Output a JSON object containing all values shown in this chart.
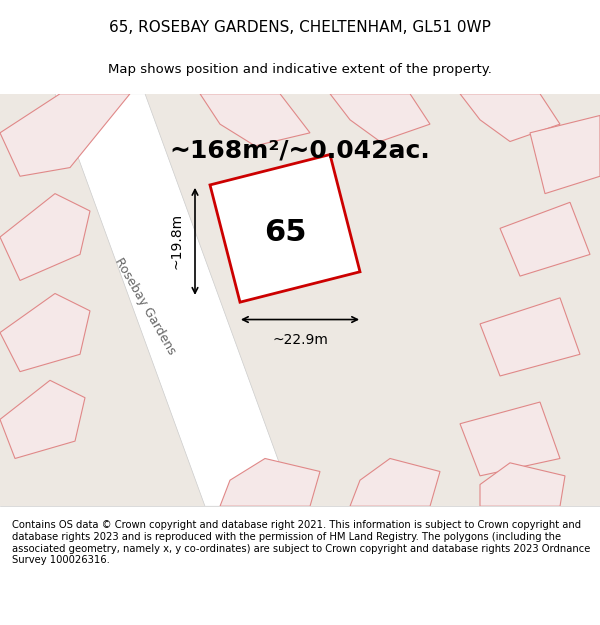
{
  "title": "65, ROSEBAY GARDENS, CHELTENHAM, GL51 0WP",
  "subtitle": "Map shows position and indicative extent of the property.",
  "area_label": "~168m²/~0.042ac.",
  "property_number": "65",
  "dim_width": "~22.9m",
  "dim_height": "~19.8m",
  "road_label": "Rosebay Gardens",
  "footer": "Contains OS data © Crown copyright and database right 2021. This information is subject to Crown copyright and database rights 2023 and is reproduced with the permission of HM Land Registry. The polygons (including the associated geometry, namely x, y co-ordinates) are subject to Crown copyright and database rights 2023 Ordnance Survey 100026316.",
  "bg_color": "#f0ece8",
  "map_bg": "#f5f0eb",
  "property_fill": "white",
  "property_edge": "#cc0000",
  "other_fill": "#f0e8e8",
  "other_edge": "#e08080",
  "road_fill": "white",
  "road_edge": "#cccccc",
  "title_fontsize": 11,
  "subtitle_fontsize": 9.5,
  "area_fontsize": 18,
  "number_fontsize": 22,
  "dim_fontsize": 10,
  "road_label_fontsize": 9,
  "footer_fontsize": 7.2
}
